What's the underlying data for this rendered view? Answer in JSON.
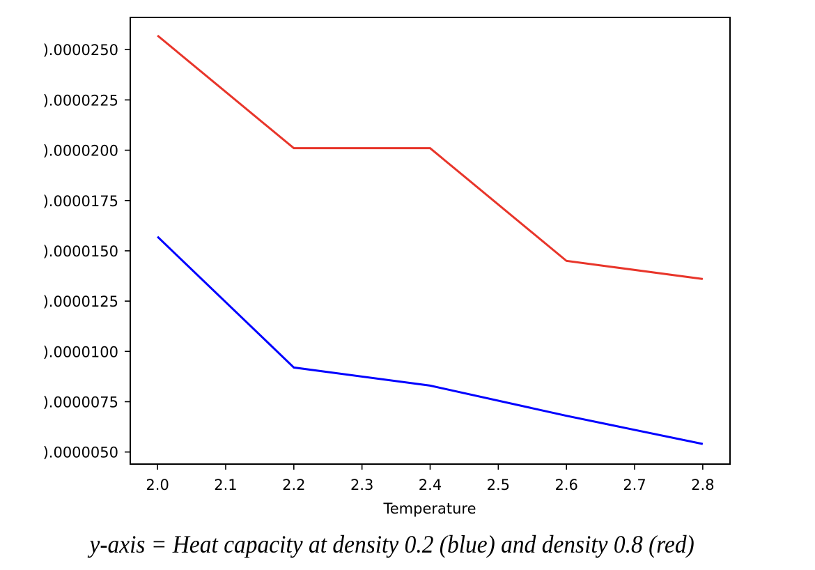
{
  "chart_data": {
    "type": "line",
    "title": "",
    "xlabel": "Temperature",
    "ylabel": "",
    "caption": "y-axis = Heat capacity at density 0.2 (blue) and density 0.8 (red)",
    "x": [
      2.0,
      2.2,
      2.4,
      2.6,
      2.8
    ],
    "xlim": [
      1.96,
      2.84
    ],
    "ylim": [
      4.4e-06,
      2.66e-05
    ],
    "xticks": [
      2.0,
      2.1,
      2.2,
      2.3,
      2.4,
      2.5,
      2.6,
      2.7,
      2.8
    ],
    "xtick_labels": [
      "2.0",
      "2.1",
      "2.2",
      "2.3",
      "2.4",
      "2.5",
      "2.6",
      "2.7",
      "2.8"
    ],
    "yticks": [
      5e-06,
      7.5e-06,
      1e-05,
      1.25e-05,
      1.5e-05,
      1.75e-05,
      2e-05,
      2.25e-05,
      2.5e-05
    ],
    "ytick_labels": [
      ").0000050",
      ").0000075",
      ").0000100",
      ").0000125",
      ").0000150",
      ").0000175",
      ").0000200",
      ").0000225",
      ").0000250"
    ],
    "grid": false,
    "legend": "none",
    "series": [
      {
        "name": "density 0.2",
        "color": "#0000ff",
        "values": [
          1.57e-05,
          9.2e-06,
          8.3e-06,
          6.8e-06,
          5.4e-06
        ]
      },
      {
        "name": "density 0.8",
        "color": "#e8352a",
        "values": [
          2.57e-05,
          2.01e-05,
          2.01e-05,
          1.45e-05,
          1.36e-05
        ]
      }
    ]
  }
}
